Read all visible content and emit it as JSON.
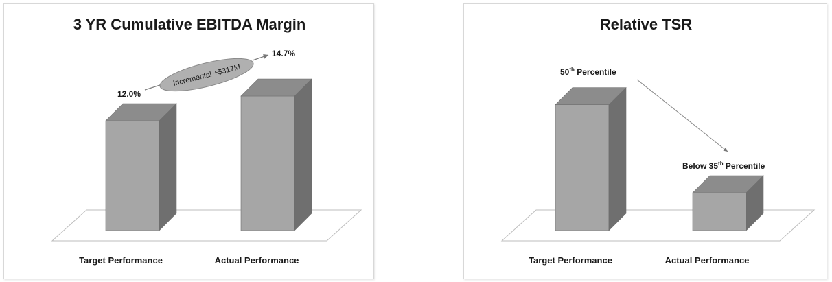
{
  "chart_data": [
    {
      "type": "bar",
      "title": "3 YR Cumulative EBITDA Margin",
      "categories": [
        "Target Performance",
        "Actual Performance"
      ],
      "values": [
        12.0,
        14.7
      ],
      "value_labels": [
        "12.0%",
        "14.7%"
      ],
      "annotation": "Incremental +$317M",
      "ylim": [
        0,
        18
      ],
      "grid": false,
      "bar_color": "#a6a6a6"
    },
    {
      "type": "bar",
      "title": "Relative TSR",
      "categories": [
        "Target Performance",
        "Actual Performance"
      ],
      "values": [
        50,
        15
      ],
      "value_labels": [
        {
          "prefix": "50",
          "sup": "th",
          "suffix": " Percentile"
        },
        {
          "prefix": "Below  35",
          "sup": "th",
          "suffix": " Percentile"
        }
      ],
      "ylim": [
        0,
        60
      ],
      "grid": false,
      "bar_color": "#a6a6a6"
    }
  ]
}
